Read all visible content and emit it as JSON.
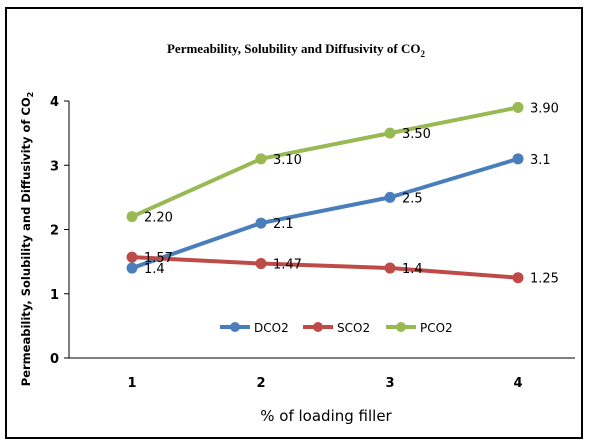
{
  "chart_data": {
    "type": "line",
    "title": "Permeability, Solubility and Diffusivity of CO",
    "title_subscript": "2",
    "ylabel": "Permeability, Solubility and Diffusivity of CO",
    "ylabel_subscript": "2",
    "xlabel": "% of loading filler",
    "categories": [
      "1",
      "2",
      "3",
      "4"
    ],
    "x_tick_labels": [
      "1",
      "2",
      "3",
      "4"
    ],
    "y_tick_labels": [
      "0",
      "1",
      "2",
      "3",
      "4"
    ],
    "ylim": [
      0,
      4
    ],
    "grid": false,
    "legend_position": "bottom-center",
    "series": [
      {
        "name": "DCO2",
        "color": "#4a7ebb",
        "values": [
          1.4,
          2.1,
          2.5,
          3.1
        ],
        "labels": [
          "1.4",
          "2.1",
          "2.5",
          "3.1"
        ]
      },
      {
        "name": "SCO2",
        "color": "#be4b48",
        "values": [
          1.57,
          1.47,
          1.4,
          1.25
        ],
        "labels": [
          "1.57",
          "1.47",
          "1.4",
          "1.25"
        ]
      },
      {
        "name": "PCO2",
        "color": "#98b954",
        "values": [
          2.2,
          3.1,
          3.5,
          3.9
        ],
        "labels": [
          "2.20",
          "3.10",
          "3.50",
          "3.90"
        ]
      }
    ]
  }
}
